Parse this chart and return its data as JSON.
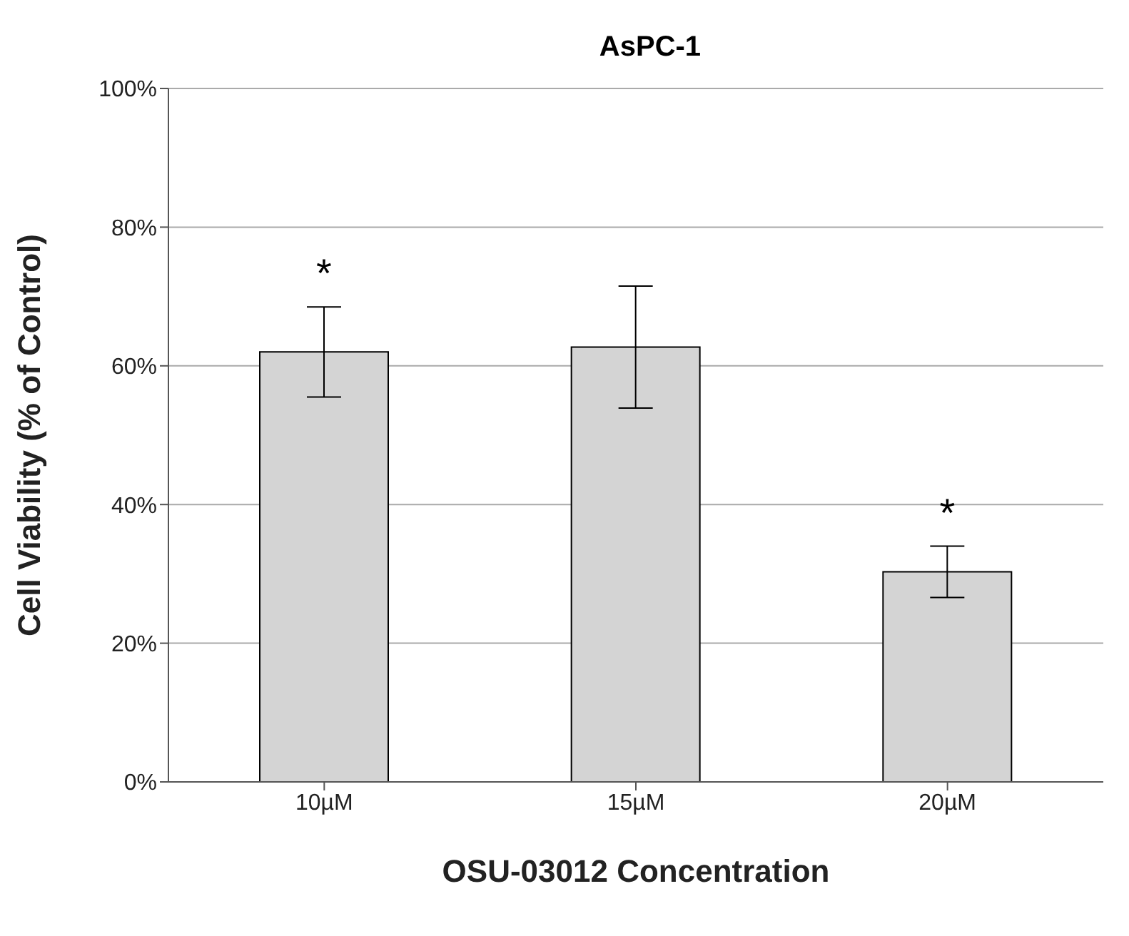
{
  "chart_data": {
    "type": "bar",
    "title": "AsPC-1",
    "xlabel": "OSU-03012 Concentration",
    "ylabel": "Cell Viability (% of Control)",
    "categories": [
      "10µM",
      "15µM",
      "20µM"
    ],
    "values": [
      62,
      62.7,
      30.3
    ],
    "errors": [
      6.5,
      8.8,
      3.7
    ],
    "color": "#d4d4d4",
    "ylim": [
      0,
      100
    ],
    "yticks": [
      {
        "value": 0,
        "label": "0%"
      },
      {
        "value": 20,
        "label": "20%"
      },
      {
        "value": 40,
        "label": "40%"
      },
      {
        "value": 60,
        "label": "60%"
      },
      {
        "value": 80,
        "label": "80%"
      },
      {
        "value": 100,
        "label": "100%"
      }
    ],
    "grid": "y",
    "value_labels": [
      "*",
      null,
      "*"
    ]
  }
}
